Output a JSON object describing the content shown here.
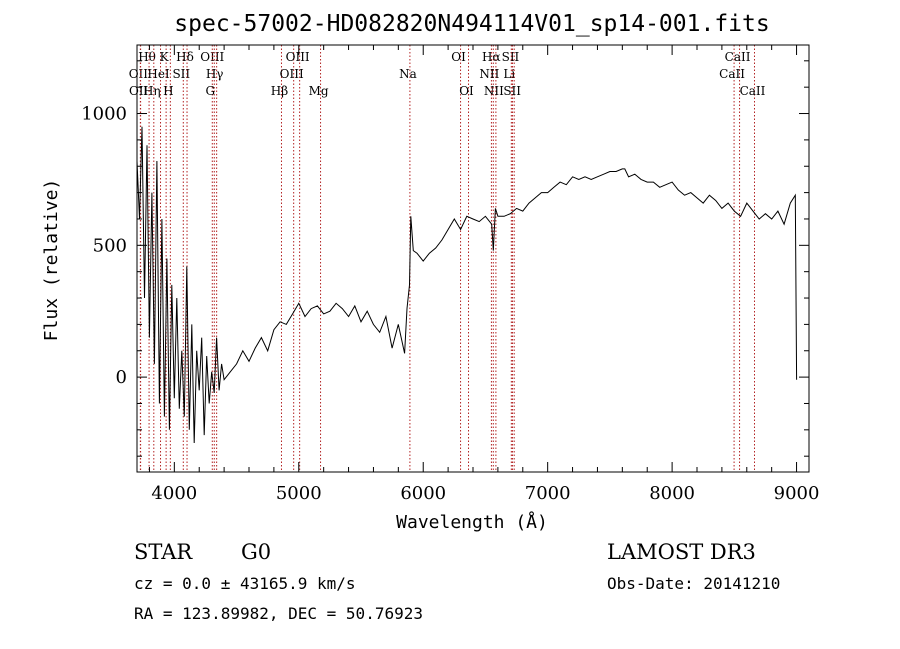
{
  "chart_data": {
    "type": "line",
    "title": "spec-57002-HD082820N494114V01_sp14-001.fits",
    "xlabel": "Wavelength (Å)",
    "ylabel": "Flux (relative)",
    "xlim": [
      3700,
      9100
    ],
    "ylim": [
      -360,
      1260
    ],
    "xticks": [
      4000,
      5000,
      6000,
      7000,
      8000,
      9000
    ],
    "yticks": [
      0,
      500,
      1000
    ],
    "grid": false,
    "series": [
      {
        "x": [
          3700,
          3720,
          3740,
          3760,
          3780,
          3800,
          3820,
          3840,
          3860,
          3880,
          3900,
          3920,
          3940,
          3960,
          3980,
          4000,
          4020,
          4040,
          4060,
          4080,
          4100,
          4120,
          4140,
          4160,
          4180,
          4200,
          4220,
          4240,
          4260,
          4280,
          4300,
          4320,
          4340,
          4360,
          4380,
          4400,
          4450,
          4500,
          4550,
          4600,
          4650,
          4700,
          4750,
          4800,
          4850,
          4900,
          4950,
          5000,
          5050,
          5100,
          5150,
          5200,
          5250,
          5300,
          5350,
          5400,
          5450,
          5500,
          5550,
          5600,
          5650,
          5700,
          5750,
          5800,
          5850,
          5870,
          5890,
          5900,
          5920,
          5950,
          6000,
          6050,
          6100,
          6150,
          6200,
          6250,
          6300,
          6350,
          6400,
          6450,
          6500,
          6550,
          6563,
          6580,
          6600,
          6650,
          6700,
          6750,
          6800,
          6850,
          6900,
          6950,
          7000,
          7050,
          7100,
          7150,
          7200,
          7250,
          7300,
          7350,
          7400,
          7450,
          7500,
          7550,
          7600,
          7620,
          7650,
          7700,
          7750,
          7800,
          7850,
          7900,
          7950,
          8000,
          8050,
          8100,
          8150,
          8200,
          8250,
          8300,
          8350,
          8400,
          8450,
          8500,
          8550,
          8600,
          8650,
          8700,
          8750,
          8800,
          8850,
          8900,
          8950,
          8990,
          9000
        ],
        "values": [
          820,
          600,
          950,
          300,
          880,
          150,
          700,
          50,
          820,
          -100,
          600,
          -150,
          450,
          -200,
          350,
          -80,
          300,
          -120,
          100,
          -150,
          420,
          -200,
          200,
          -250,
          100,
          -50,
          150,
          -220,
          80,
          -100,
          20,
          -60,
          150,
          -50,
          50,
          -10,
          20,
          50,
          100,
          60,
          110,
          150,
          100,
          180,
          210,
          200,
          240,
          280,
          230,
          260,
          270,
          240,
          250,
          280,
          260,
          230,
          270,
          210,
          250,
          200,
          170,
          230,
          110,
          200,
          90,
          260,
          350,
          610,
          480,
          470,
          440,
          470,
          490,
          520,
          560,
          600,
          560,
          610,
          600,
          590,
          610,
          580,
          480,
          640,
          610,
          610,
          620,
          640,
          630,
          660,
          680,
          700,
          700,
          720,
          740,
          730,
          760,
          750,
          760,
          750,
          760,
          770,
          780,
          780,
          790,
          790,
          760,
          770,
          750,
          740,
          740,
          720,
          730,
          740,
          710,
          690,
          700,
          680,
          660,
          690,
          670,
          640,
          660,
          630,
          610,
          660,
          630,
          600,
          620,
          600,
          630,
          580,
          660,
          690,
          -10
        ]
      }
    ],
    "spectral_lines": [
      {
        "label": "OII",
        "x": 3727,
        "row": 2
      },
      {
        "label": "OII",
        "x": 3729,
        "row": 3
      },
      {
        "label": "Hθ",
        "x": 3797,
        "row": 1
      },
      {
        "label": "Hη",
        "x": 3835,
        "row": 3
      },
      {
        "label": "HeI",
        "x": 3889,
        "row": 2
      },
      {
        "label": "K",
        "x": 3934,
        "row": 1
      },
      {
        "label": "H",
        "x": 3968,
        "row": 3
      },
      {
        "label": "SII",
        "x": 4072,
        "row": 2
      },
      {
        "label": "Hδ",
        "x": 4102,
        "row": 1
      },
      {
        "label": "OIII",
        "x": 4321,
        "row": 1
      },
      {
        "label": "Hγ",
        "x": 4340,
        "row": 2
      },
      {
        "label": "G",
        "x": 4305,
        "row": 3
      },
      {
        "label": "Hβ",
        "x": 4861,
        "row": 3
      },
      {
        "label": "OIII",
        "x": 4959,
        "row": 2
      },
      {
        "label": "OIII",
        "x": 5007,
        "row": 1
      },
      {
        "label": "Mg",
        "x": 5175,
        "row": 3
      },
      {
        "label": "Na",
        "x": 5893,
        "row": 2
      },
      {
        "label": "OI",
        "x": 6300,
        "row": 1
      },
      {
        "label": "OI",
        "x": 6364,
        "row": 3
      },
      {
        "label": "Hα",
        "x": 6563,
        "row": 1
      },
      {
        "label": "NII",
        "x": 6548,
        "row": 2
      },
      {
        "label": "NII",
        "x": 6584,
        "row": 3
      },
      {
        "label": "SII",
        "x": 6717,
        "row": 1
      },
      {
        "label": "Li",
        "x": 6708,
        "row": 2
      },
      {
        "label": "SII",
        "x": 6731,
        "row": 3
      },
      {
        "label": "CaII",
        "x": 8542,
        "row": 1
      },
      {
        "label": "CaII",
        "x": 8498,
        "row": 2
      },
      {
        "label": "CaII",
        "x": 8662,
        "row": 3
      }
    ]
  },
  "info": {
    "class": "STAR",
    "subclass": "G0",
    "survey": "LAMOST DR3",
    "cz": "cz = 0.0 ± 43165.9 km/s",
    "obs_date": "Obs-Date: 20141210",
    "radec": "RA = 123.89982, DEC =  50.76923"
  },
  "colors": {
    "line": "#000000",
    "marker": "#b22222"
  }
}
